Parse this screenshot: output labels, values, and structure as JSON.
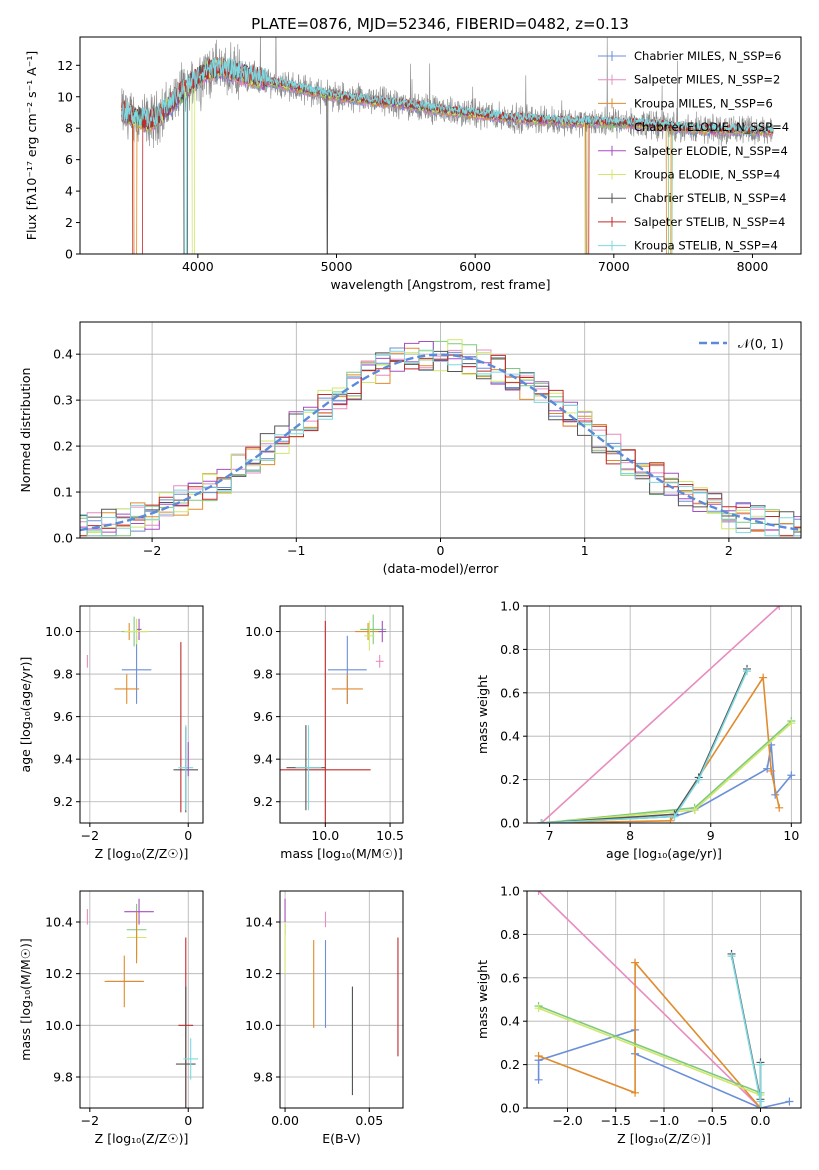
{
  "figure": {
    "title": "PLATE=0876, MJD=52346, FIBERID=0482, z=0.13"
  },
  "colors": [
    "#6b8fd8",
    "#e88cc0",
    "#e08b2d",
    "#7fc97f",
    "#a64fc0",
    "#cfe86a",
    "#555555",
    "#c22a2a",
    "#7dd8df"
  ],
  "chart_data": [
    {
      "id": "spectrum",
      "type": "line",
      "title": "PLATE=0876, MJD=52346, FIBERID=0482, z=0.13",
      "xlabel": "wavelength [Angstrom, rest frame]",
      "ylabel": "Flux [fλ10⁻¹⁷ erg cm⁻² s⁻¹ A⁻¹]",
      "xlim": [
        3150,
        8350
      ],
      "ylim": [
        0,
        13.8
      ],
      "xticks": [
        4000,
        5000,
        6000,
        7000,
        8000
      ],
      "yticks": [
        0,
        2,
        4,
        6,
        8,
        10,
        12
      ],
      "grid": false,
      "legend": "top-right",
      "continuum": {
        "x": [
          3450,
          3550,
          3650,
          3750,
          3850,
          3950,
          4050,
          4150,
          4300,
          4500,
          4700,
          4900,
          5100,
          5300,
          5500,
          5700,
          5900,
          6100,
          6300,
          6500,
          6700,
          6900,
          7100,
          7300,
          7500,
          7700,
          7900,
          8100
        ],
        "y": [
          9.0,
          8.7,
          8.4,
          9.0,
          10.0,
          10.8,
          11.6,
          11.8,
          11.5,
          11.0,
          10.6,
          10.2,
          9.9,
          9.7,
          9.5,
          9.2,
          9.0,
          8.8,
          8.6,
          8.5,
          8.4,
          8.4,
          8.3,
          8.2,
          8.0,
          7.9,
          7.9,
          7.8
        ]
      },
      "series": [
        {
          "name": "Chabrier MILES, N_SSP=6"
        },
        {
          "name": "Salpeter MILES, N_SSP=2"
        },
        {
          "name": "Kroupa MILES, N_SSP=6"
        },
        {
          "name": "Chabrier ELODIE, N_SSP=4"
        },
        {
          "name": "Salpeter ELODIE, N_SSP=4"
        },
        {
          "name": "Kroupa ELODIE, N_SSP=4"
        },
        {
          "name": "Chabrier STELIB, N_SSP=4"
        },
        {
          "name": "Salpeter STELIB, N_SSP=4"
        },
        {
          "name": "Kroupa STELIB, N_SSP=4"
        }
      ]
    },
    {
      "id": "residuals",
      "type": "line",
      "xlabel": "(data-model)/error",
      "ylabel": "Normed distribution",
      "xlim": [
        -2.5,
        2.5
      ],
      "ylim": [
        0,
        0.47
      ],
      "xticks": [
        -2,
        -1,
        0,
        1,
        2
      ],
      "yticks": [
        0.0,
        0.1,
        0.2,
        0.3,
        0.4
      ],
      "grid": true,
      "legend": "top-right",
      "gaussian": {
        "name": "𝒩(0, 1)",
        "mu": 0,
        "sigma": 1
      }
    },
    {
      "id": "age_vs_Z",
      "type": "scatter",
      "xlabel": "Z [log₁₀(Z/Z☉)]",
      "ylabel": "age  [log₁₀(age/yr)]",
      "xlim": [
        -2.2,
        0.3
      ],
      "ylim": [
        9.1,
        10.12
      ],
      "xticks": [
        -2,
        0
      ],
      "yticks": [
        9.2,
        9.4,
        9.6,
        9.8,
        10.0
      ],
      "grid": true,
      "points": [
        {
          "x": -2.05,
          "y": 9.86,
          "xe": 0,
          "ye": 0.03,
          "c": 1
        },
        {
          "x": -1.05,
          "y": 9.82,
          "xe": 0.3,
          "ye": 0.16,
          "c": 0
        },
        {
          "x": -1.25,
          "y": 9.73,
          "xe": 0.25,
          "ye": 0.07,
          "c": 2
        },
        {
          "x": -1.2,
          "y": 10.0,
          "xe": 0.05,
          "ye": 0.04,
          "c": 2
        },
        {
          "x": -1.1,
          "y": 10.0,
          "xe": 0.25,
          "ye": 0.07,
          "c": 3
        },
        {
          "x": -1.0,
          "y": 10.01,
          "xe": 0.05,
          "ye": 0.05,
          "c": 4
        },
        {
          "x": -1.05,
          "y": 10.0,
          "xe": 0.25,
          "ye": 0.06,
          "c": 5
        },
        {
          "x": -0.15,
          "y": 9.55,
          "xe": 0,
          "ye": 0.4,
          "c": 7
        },
        {
          "x": -0.05,
          "y": 9.35,
          "xe": 0.25,
          "ye": 0.2,
          "c": 6
        },
        {
          "x": -0.05,
          "y": 9.36,
          "xe": 0.15,
          "ye": 0.2,
          "c": 8
        },
        {
          "x": 0.0,
          "y": 9.4,
          "xe": 0,
          "ye": 0.08,
          "c": 4
        }
      ]
    },
    {
      "id": "age_vs_mass",
      "type": "scatter",
      "xlabel": "mass [log₁₀(M/M☉)]",
      "ylabel": "",
      "xlim": [
        9.65,
        10.6
      ],
      "ylim": [
        9.1,
        10.12
      ],
      "xticks": [
        10.0,
        10.5
      ],
      "yticks": [
        9.2,
        9.4,
        9.6,
        9.8,
        10.0
      ],
      "grid": true,
      "points": [
        {
          "x": 10.42,
          "y": 9.86,
          "xe": 0.03,
          "ye": 0.03,
          "c": 1
        },
        {
          "x": 10.17,
          "y": 9.82,
          "xe": 0.15,
          "ye": 0.16,
          "c": 0
        },
        {
          "x": 10.17,
          "y": 9.73,
          "xe": 0.12,
          "ye": 0.07,
          "c": 2
        },
        {
          "x": 10.33,
          "y": 10.0,
          "xe": 0.1,
          "ye": 0.04,
          "c": 2
        },
        {
          "x": 10.37,
          "y": 10.01,
          "xe": 0.1,
          "ye": 0.07,
          "c": 3
        },
        {
          "x": 10.44,
          "y": 10.0,
          "xe": 0.03,
          "ye": 0.05,
          "c": 4
        },
        {
          "x": 10.34,
          "y": 9.98,
          "xe": 0.04,
          "ye": 0.07,
          "c": 5
        },
        {
          "x": 10.0,
          "y": 9.55,
          "xe": 0,
          "ye": 0.5,
          "c": 7
        },
        {
          "x": 10.0,
          "y": 9.35,
          "xe": 0.35,
          "ye": 0,
          "c": 7
        },
        {
          "x": 9.85,
          "y": 9.36,
          "xe": 0.15,
          "ye": 0.2,
          "c": 6
        },
        {
          "x": 9.87,
          "y": 9.36,
          "xe": 0.1,
          "ye": 0.2,
          "c": 8
        }
      ]
    },
    {
      "id": "weight_vs_age",
      "type": "line",
      "xlabel": "age  [log₁₀(age/yr)]",
      "ylabel": "mass weight",
      "xlim": [
        6.72,
        10.12
      ],
      "ylim": [
        0,
        1.0
      ],
      "xticks": [
        7,
        8,
        9,
        10
      ],
      "yticks": [
        0.0,
        0.2,
        0.4,
        0.6,
        0.8,
        1.0
      ],
      "grid": true,
      "series": [
        {
          "c": 0,
          "x": [
            6.9,
            8.55,
            8.8,
            9.7,
            9.75,
            9.8,
            10.0
          ],
          "y": [
            0.0,
            0.03,
            0.06,
            0.25,
            0.36,
            0.13,
            0.22
          ]
        },
        {
          "c": 1,
          "x": [
            6.9,
            9.85
          ],
          "y": [
            0.0,
            1.0
          ]
        },
        {
          "c": 2,
          "x": [
            6.9,
            8.5,
            9.65,
            9.75,
            9.85
          ],
          "y": [
            0.0,
            0.01,
            0.67,
            0.24,
            0.07
          ]
        },
        {
          "c": 3,
          "x": [
            6.9,
            8.8,
            10.0
          ],
          "y": [
            0.0,
            0.07,
            0.47
          ]
        },
        {
          "c": 5,
          "x": [
            6.9,
            8.8,
            10.0
          ],
          "y": [
            0.0,
            0.06,
            0.46
          ]
        },
        {
          "c": 6,
          "x": [
            6.9,
            8.55,
            8.85,
            9.45
          ],
          "y": [
            0.0,
            0.04,
            0.21,
            0.71
          ]
        },
        {
          "c": 8,
          "x": [
            6.9,
            8.55,
            8.85,
            9.45
          ],
          "y": [
            0.0,
            0.03,
            0.2,
            0.7
          ]
        }
      ]
    },
    {
      "id": "mass_vs_Z",
      "type": "scatter",
      "xlabel": "Z [log₁₀(Z/Z☉)]",
      "ylabel": "mass [log₁₀(M/M☉)]",
      "xlim": [
        -2.2,
        0.3
      ],
      "ylim": [
        9.68,
        10.52
      ],
      "xticks": [
        -2,
        0
      ],
      "yticks": [
        9.8,
        10.0,
        10.2,
        10.4
      ],
      "grid": true,
      "points": [
        {
          "x": -2.05,
          "y": 10.42,
          "xe": 0,
          "ye": 0.03,
          "c": 1
        },
        {
          "x": -1.3,
          "y": 10.17,
          "xe": 0.35,
          "ye": 0,
          "c": 0
        },
        {
          "x": -1.3,
          "y": 10.17,
          "xe": 0.4,
          "ye": 0.1,
          "c": 2
        },
        {
          "x": -1.05,
          "y": 10.37,
          "xe": 0.2,
          "ye": 0.1,
          "c": 3
        },
        {
          "x": -1.0,
          "y": 10.44,
          "xe": 0.3,
          "ye": 0.05,
          "c": 4
        },
        {
          "x": -1.05,
          "y": 10.34,
          "xe": 0.2,
          "ye": 0.08,
          "c": 5
        },
        {
          "x": -1.05,
          "y": 10.34,
          "xe": 0,
          "ye": 0.1,
          "c": 2
        },
        {
          "x": -0.05,
          "y": 10.0,
          "xe": 0.15,
          "ye": 0.34,
          "c": 7
        },
        {
          "x": -0.05,
          "y": 9.85,
          "xe": 0.2,
          "ye": 0.3,
          "c": 6
        },
        {
          "x": 0.05,
          "y": 9.87,
          "xe": 0.15,
          "ye": 0.08,
          "c": 8
        }
      ]
    },
    {
      "id": "mass_vs_ebv",
      "type": "scatter",
      "xlabel": "E(B-V)",
      "ylabel": "",
      "xlim": [
        -0.003,
        0.07
      ],
      "ylim": [
        9.68,
        10.52
      ],
      "xticks": [
        0.0,
        0.05
      ],
      "yticks": [
        9.8,
        10.0,
        10.2,
        10.4
      ],
      "grid": true,
      "points": [
        {
          "x": 0.0,
          "y": 10.42,
          "xe": 0,
          "ye": 0.07,
          "c": 4
        },
        {
          "x": 0.0,
          "y": 10.3,
          "xe": 0,
          "ye": 0.1,
          "c": 5
        },
        {
          "x": 0.017,
          "y": 10.16,
          "xe": 0,
          "ye": 0.17,
          "c": 2
        },
        {
          "x": 0.024,
          "y": 10.16,
          "xe": 0,
          "ye": 0.17,
          "c": 0
        },
        {
          "x": 0.024,
          "y": 10.41,
          "xe": 0,
          "ye": 0.03,
          "c": 1
        },
        {
          "x": 0.04,
          "y": 9.94,
          "xe": 0,
          "ye": 0.21,
          "c": 8
        },
        {
          "x": 0.04,
          "y": 9.94,
          "xe": 0,
          "ye": 0.21,
          "c": 6
        },
        {
          "x": 0.067,
          "y": 10.11,
          "xe": 0,
          "ye": 0.23,
          "c": 7
        }
      ]
    },
    {
      "id": "weight_vs_Z",
      "type": "line",
      "xlabel": "Z [log₁₀(Z/Z☉)]",
      "ylabel": "mass weight",
      "xlim": [
        -2.42,
        0.42
      ],
      "ylim": [
        0,
        1.0
      ],
      "xticks": [
        -2.0,
        -1.5,
        -1.0,
        -0.5,
        0.0
      ],
      "yticks": [
        0.0,
        0.2,
        0.4,
        0.6,
        0.8,
        1.0
      ],
      "grid": true,
      "series": [
        {
          "c": 0,
          "x": [
            -2.3,
            -2.3,
            -1.3,
            -1.3,
            0.0,
            0.3
          ],
          "y": [
            0.13,
            0.22,
            0.36,
            0.25,
            0.0,
            0.03
          ]
        },
        {
          "c": 1,
          "x": [
            -2.3,
            0.0
          ],
          "y": [
            1.0,
            0.0
          ]
        },
        {
          "c": 2,
          "x": [
            -2.3,
            -1.3,
            -1.3,
            0.0
          ],
          "y": [
            0.24,
            0.07,
            0.67,
            0.0
          ]
        },
        {
          "c": 3,
          "x": [
            -2.3,
            0.0,
            0.0
          ],
          "y": [
            0.47,
            0.07,
            0.0
          ]
        },
        {
          "c": 5,
          "x": [
            -2.3,
            0.0,
            0.0
          ],
          "y": [
            0.46,
            0.06,
            0.0
          ]
        },
        {
          "c": 6,
          "x": [
            -0.3,
            0.0,
            0.0,
            0.0
          ],
          "y": [
            0.71,
            0.04,
            0.21,
            0.0
          ]
        },
        {
          "c": 8,
          "x": [
            -0.3,
            0.0,
            0.0,
            0.0
          ],
          "y": [
            0.7,
            0.03,
            0.2,
            0.0
          ]
        }
      ]
    }
  ]
}
